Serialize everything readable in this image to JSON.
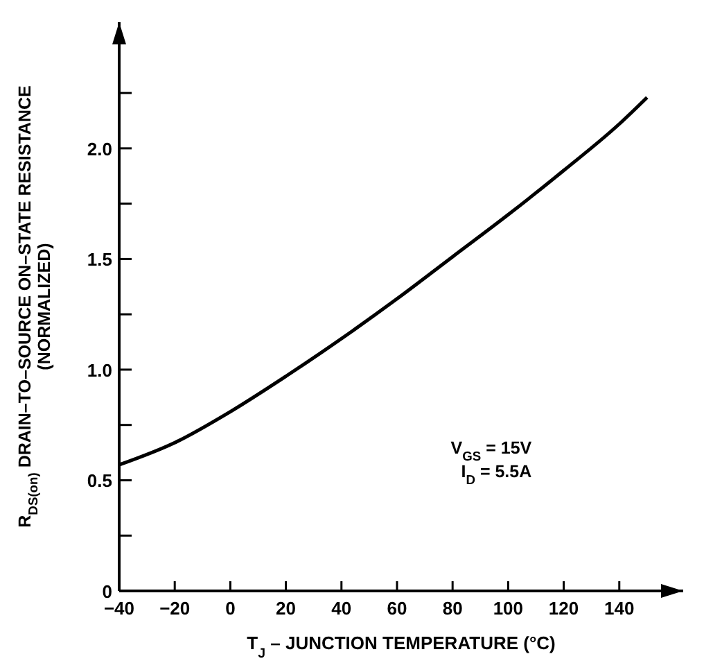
{
  "chart_data": {
    "type": "line",
    "xlabel": "T$_{J}$ – JUNCTION TEMPERATURE (°C)",
    "ylabel": "R$_{DS(on)}$ DRAIN–TO–SOURCE ON–STATE RESISTANCE\n(NORMALIZED)",
    "x": [
      -40,
      -20,
      0,
      20,
      40,
      60,
      80,
      100,
      120,
      140,
      150
    ],
    "series": [
      {
        "color": "#000000",
        "values": [
          0.57,
          0.67,
          0.81,
          0.97,
          1.14,
          1.32,
          1.51,
          1.7,
          1.9,
          2.11,
          2.23
        ]
      }
    ],
    "xlim": [
      -40,
      163
    ],
    "ylim": [
      0,
      2.57
    ],
    "xticks": [
      -40,
      -20,
      0,
      20,
      40,
      60,
      80,
      100,
      120,
      140
    ],
    "yticks": [
      0,
      {
        "value": 0.25,
        "label": null
      },
      0.5,
      {
        "value": 0.75,
        "label": null
      },
      {
        "value": 1.0,
        "label": "1.0"
      },
      {
        "value": 1.25,
        "label": null
      },
      1.5,
      {
        "value": 1.75,
        "label": null
      },
      {
        "value": 2.0,
        "label": "2.0"
      },
      {
        "value": 2.25,
        "label": null
      }
    ],
    "annotations": [
      {
        "text": "V$_{GS}$ = 15V"
      },
      {
        "text": "I$_{D}$ = 5.5A"
      }
    ],
    "line_style": "solid"
  }
}
